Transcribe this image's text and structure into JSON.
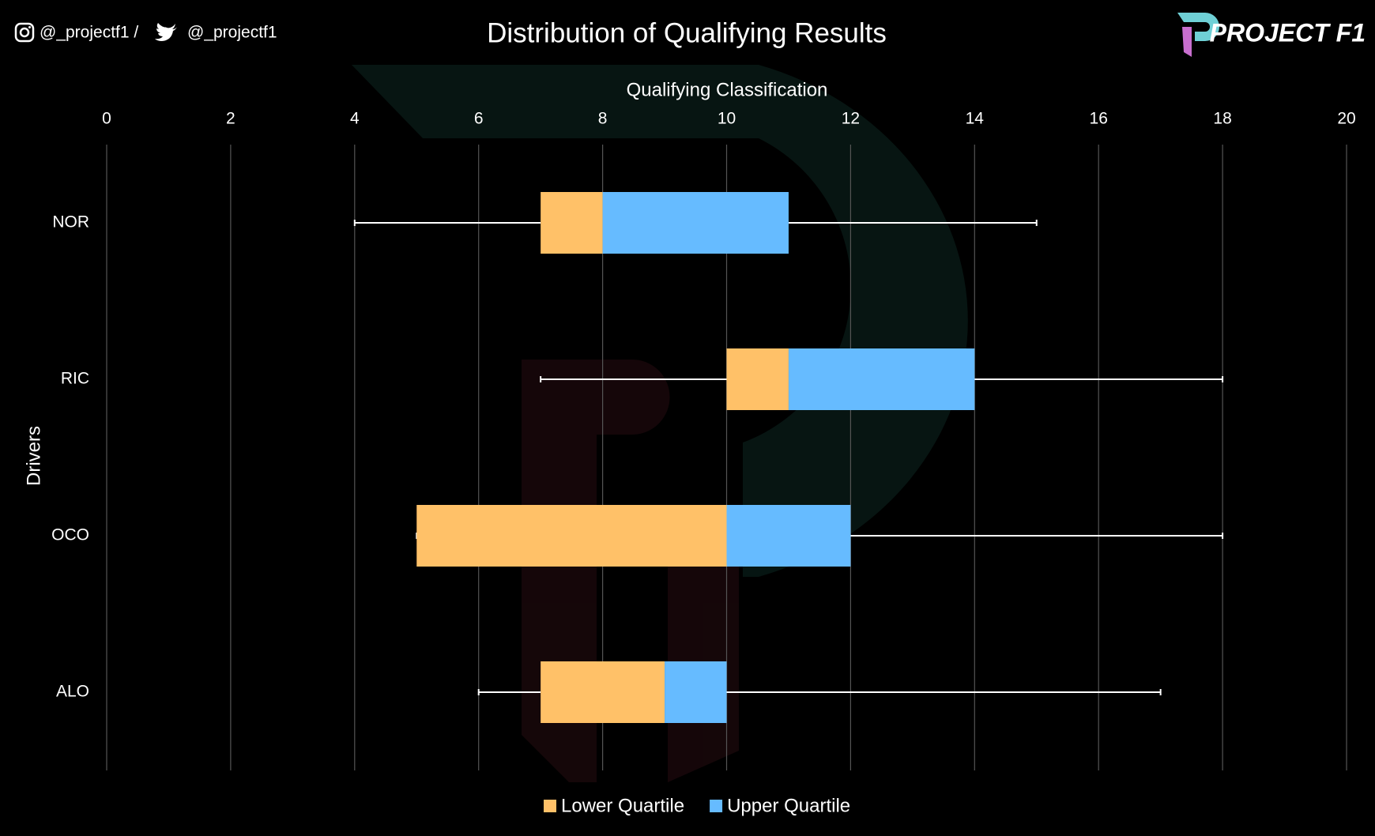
{
  "chart_data": {
    "type": "box",
    "title": "Distribution of Qualifying Results",
    "social_instagram": "@_projectf1 /",
    "social_twitter": "@_projectf1",
    "brand": "PROJECT F1",
    "x_label": "Qualifying Classification",
    "y_label": "Drivers",
    "categories": [
      "NOR",
      "RIC",
      "OCO",
      "ALO"
    ],
    "min": [
      4,
      7,
      5,
      6
    ],
    "q1": [
      7,
      10,
      5,
      7
    ],
    "median": [
      8,
      11,
      10,
      9
    ],
    "q3": [
      11,
      14,
      12,
      10
    ],
    "max": [
      15,
      18,
      18,
      17
    ],
    "series": [
      {
        "name": "Lower Quartile",
        "color": "#ffc168"
      },
      {
        "name": "Upper Quartile",
        "color": "#66bbff"
      }
    ],
    "xlim": [
      0,
      20
    ],
    "xticks": [
      0,
      2,
      4,
      6,
      8,
      10,
      12,
      14,
      16,
      18,
      20
    ],
    "grid": true
  }
}
